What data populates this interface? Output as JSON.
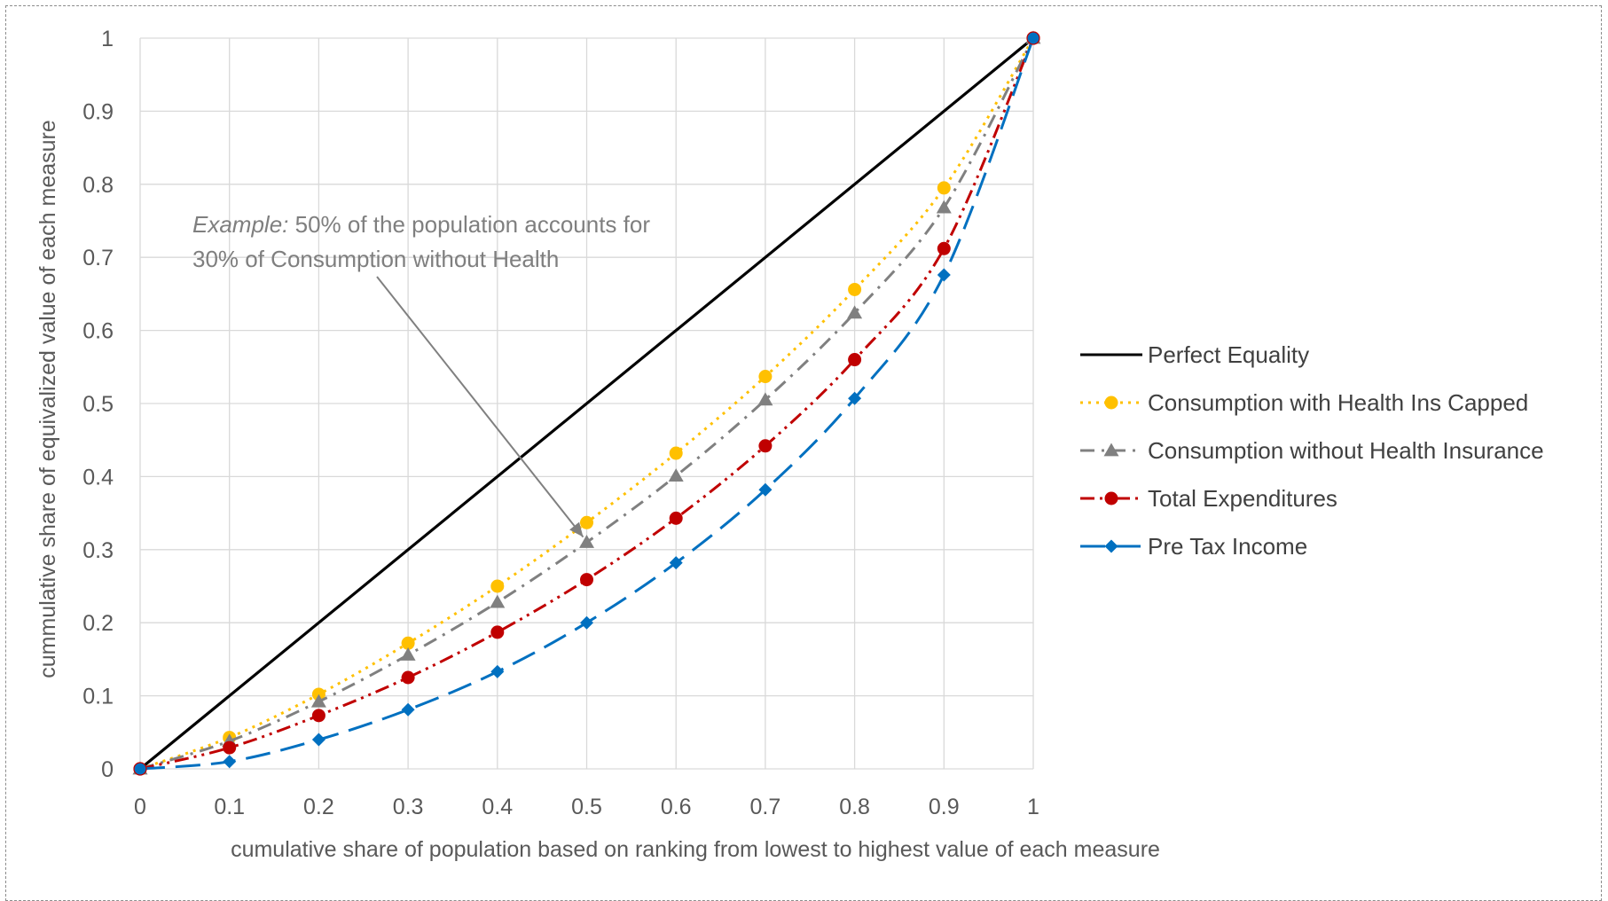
{
  "chart_data": {
    "type": "line",
    "xlabel": "cumulative share of population based on ranking from lowest to highest value of each measure",
    "ylabel": "cummulative share of equivalized value of each measure",
    "xlim": [
      0,
      1
    ],
    "ylim": [
      0,
      1
    ],
    "x_ticks": [
      "0",
      "0.1",
      "0.2",
      "0.3",
      "0.4",
      "0.5",
      "0.6",
      "0.7",
      "0.8",
      "0.9",
      "1"
    ],
    "y_ticks": [
      "0",
      "0.1",
      "0.2",
      "0.3",
      "0.4",
      "0.5",
      "0.6",
      "0.7",
      "0.8",
      "0.9",
      "1"
    ],
    "grid": true,
    "legend_position": "right",
    "annotation": {
      "prefix": "Example:",
      "line1_rest": " 50% of the population accounts for",
      "line2": "30% of Consumption without Health",
      "points_to": {
        "x": 0.5,
        "y": 0.31
      }
    },
    "x": [
      0,
      0.1,
      0.2,
      0.3,
      0.4,
      0.5,
      0.6,
      0.7,
      0.8,
      0.9,
      1
    ],
    "series": [
      {
        "name": "Perfect Equality",
        "color": "#000000",
        "marker": "none",
        "dash": "solid",
        "values": [
          0,
          0.1,
          0.2,
          0.3,
          0.4,
          0.5,
          0.6,
          0.7,
          0.8,
          0.9,
          1
        ]
      },
      {
        "name": "Consumption with Health Ins Capped",
        "color": "#FFC000",
        "marker": "circle",
        "dash": "dotted",
        "values": [
          0,
          0.043,
          0.102,
          0.172,
          0.25,
          0.337,
          0.432,
          0.537,
          0.656,
          0.795,
          1
        ]
      },
      {
        "name": "Consumption without Health Insurance",
        "color": "#808080",
        "marker": "triangle",
        "dash": "dashdot",
        "values": [
          0,
          0.038,
          0.092,
          0.156,
          0.228,
          0.31,
          0.401,
          0.505,
          0.624,
          0.768,
          1
        ]
      },
      {
        "name": "Total Expenditures",
        "color": "#C00000",
        "marker": "circle",
        "dash": "dashdotdot",
        "values": [
          0,
          0.029,
          0.073,
          0.125,
          0.187,
          0.259,
          0.343,
          0.442,
          0.56,
          0.712,
          1
        ]
      },
      {
        "name": "Pre Tax Income",
        "color": "#0070C0",
        "marker": "diamond",
        "dash": "longdash",
        "values": [
          0,
          0.01,
          0.04,
          0.081,
          0.133,
          0.2,
          0.282,
          0.382,
          0.507,
          0.676,
          1
        ]
      }
    ]
  }
}
